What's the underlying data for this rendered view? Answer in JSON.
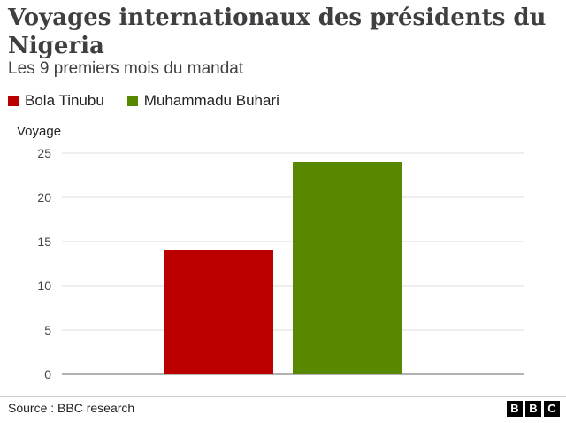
{
  "header": {
    "title": "Voyages internationaux des présidents du Nigeria",
    "subtitle": "Les 9 premiers mois du mandat"
  },
  "legend": {
    "items": [
      {
        "label": "Bola Tinubu",
        "color": "#bb0000"
      },
      {
        "label": "Muhammadu Buhari",
        "color": "#588800"
      }
    ]
  },
  "chart_data": {
    "type": "bar",
    "title": "Voyages internationaux des présidents du Nigeria",
    "subtitle": "Les 9 premiers mois du mandat",
    "ylabel": "Voyage",
    "xlabel": "",
    "ylim": [
      0,
      25
    ],
    "yticks": [
      0,
      5,
      10,
      15,
      20,
      25
    ],
    "grid": true,
    "legend_position": "top-left",
    "series": [
      {
        "name": "Bola Tinubu",
        "values": [
          14
        ],
        "color": "#bb0000"
      },
      {
        "name": "Muhammadu Buhari",
        "values": [
          24
        ],
        "color": "#588800"
      }
    ]
  },
  "footer": {
    "source": "Source : BBC research",
    "logo_letters": [
      "B",
      "B",
      "C"
    ]
  }
}
